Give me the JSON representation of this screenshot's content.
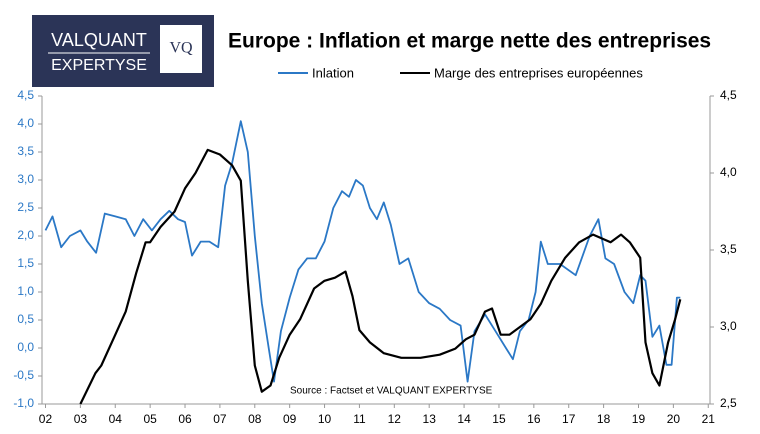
{
  "logo": {
    "line1": "VALQUANT",
    "line2": "EXPERTYSE",
    "badge": "VQ"
  },
  "chart_data": {
    "type": "line",
    "title": "Europe : Inflation et marge nette des entreprises",
    "source": "Source : Factset et VALQUANT EXPERTYSE",
    "legend": "top",
    "xlim": [
      1.9,
      21.05
    ],
    "xticks": [
      {
        "value": 2,
        "label": "02"
      },
      {
        "value": 3,
        "label": "03"
      },
      {
        "value": 4,
        "label": "04"
      },
      {
        "value": 5,
        "label": "05"
      },
      {
        "value": 6,
        "label": "06"
      },
      {
        "value": 7,
        "label": "07"
      },
      {
        "value": 8,
        "label": "08"
      },
      {
        "value": 9,
        "label": "09"
      },
      10,
      11,
      12,
      13,
      14,
      15,
      16,
      17,
      18,
      19,
      20,
      21
    ],
    "ylim": [
      -1.0,
      4.5
    ],
    "yticks": [
      {
        "value": -1.0,
        "label": "-1,0"
      },
      {
        "value": -0.5,
        "label": "-0,5"
      },
      {
        "value": 0.0,
        "label": "0,0"
      },
      {
        "value": 0.5,
        "label": "0,5"
      },
      {
        "value": 1.0,
        "label": "1,0"
      },
      {
        "value": 1.5,
        "label": "1,5"
      },
      {
        "value": 2.0,
        "label": "2,0"
      },
      {
        "value": 2.5,
        "label": "2,5"
      },
      {
        "value": 3.0,
        "label": "3,0"
      },
      {
        "value": 3.5,
        "label": "3,5"
      },
      {
        "value": 4.0,
        "label": "4,0"
      },
      {
        "value": 4.5,
        "label": "4,5"
      }
    ],
    "y2lim": [
      2.5,
      4.5
    ],
    "y2ticks": [
      {
        "value": 2.5,
        "label": "2,5"
      },
      {
        "value": 3.0,
        "label": "3,0"
      },
      {
        "value": 3.5,
        "label": "3,5"
      },
      {
        "value": 4.0,
        "label": "4,0"
      },
      {
        "value": 4.5,
        "label": "4,5"
      }
    ],
    "series": [
      {
        "name": "Inlation",
        "color": "#2b78c6",
        "axis": "y",
        "x": [
          2.0,
          2.2,
          2.45,
          2.7,
          3.0,
          3.2,
          3.45,
          3.7,
          4.0,
          4.3,
          4.55,
          4.8,
          5.05,
          5.3,
          5.55,
          5.8,
          6.0,
          6.2,
          6.45,
          6.7,
          6.95,
          7.15,
          7.35,
          7.6,
          7.8,
          8.0,
          8.2,
          8.4,
          8.55,
          8.75,
          9.0,
          9.25,
          9.5,
          9.75,
          10.0,
          10.25,
          10.5,
          10.7,
          10.9,
          11.1,
          11.3,
          11.5,
          11.7,
          11.9,
          12.15,
          12.4,
          12.7,
          13.0,
          13.3,
          13.6,
          13.9,
          14.1,
          14.3,
          14.6,
          14.9,
          15.2,
          15.4,
          15.6,
          15.85,
          16.05,
          16.2,
          16.4,
          16.75,
          17.2,
          17.6,
          17.85,
          18.05,
          18.3,
          18.6,
          18.85,
          19.05,
          19.2,
          19.4,
          19.6,
          19.8,
          19.95,
          20.1,
          20.2
        ],
        "values": [
          2.1,
          2.35,
          1.8,
          2.0,
          2.1,
          1.9,
          1.7,
          2.4,
          2.35,
          2.3,
          2.0,
          2.3,
          2.1,
          2.3,
          2.45,
          2.3,
          2.25,
          1.65,
          1.9,
          1.9,
          1.8,
          2.9,
          3.3,
          4.05,
          3.5,
          2.0,
          0.8,
          0.0,
          -0.6,
          0.3,
          0.9,
          1.4,
          1.6,
          1.6,
          1.9,
          2.5,
          2.8,
          2.7,
          3.0,
          2.9,
          2.5,
          2.3,
          2.6,
          2.2,
          1.5,
          1.6,
          1.0,
          0.8,
          0.7,
          0.5,
          0.4,
          -0.6,
          0.3,
          0.6,
          0.3,
          0.0,
          -0.2,
          0.3,
          0.5,
          1.0,
          1.9,
          1.5,
          1.5,
          1.3,
          2.0,
          2.3,
          1.6,
          1.5,
          1.0,
          0.8,
          1.3,
          1.2,
          0.2,
          0.4,
          -0.3,
          -0.3,
          0.9,
          0.9
        ]
      },
      {
        "name": "Marge des entreprises européennes",
        "color": "#000000",
        "axis": "y2",
        "x": [
          3.0,
          3.43,
          3.6,
          4.0,
          4.3,
          4.6,
          4.87,
          5.0,
          5.3,
          5.7,
          6.0,
          6.3,
          6.65,
          7.0,
          7.35,
          7.6,
          7.8,
          8.0,
          8.2,
          8.45,
          8.7,
          9.0,
          9.3,
          9.7,
          10.0,
          10.3,
          10.6,
          10.8,
          11.0,
          11.3,
          11.7,
          12.2,
          12.75,
          13.3,
          13.75,
          14.05,
          14.3,
          14.6,
          14.8,
          15.05,
          15.3,
          15.6,
          15.9,
          16.2,
          16.5,
          16.9,
          17.3,
          17.7,
          18.2,
          18.5,
          18.75,
          19.05,
          19.2,
          19.4,
          19.6,
          19.85,
          20.05,
          20.2
        ],
        "values": [
          2.5,
          2.7,
          2.75,
          2.95,
          3.1,
          3.35,
          3.55,
          3.55,
          3.65,
          3.75,
          3.9,
          4.0,
          4.15,
          4.12,
          4.05,
          3.95,
          3.3,
          2.75,
          2.58,
          2.62,
          2.8,
          2.95,
          3.05,
          3.25,
          3.3,
          3.32,
          3.36,
          3.2,
          2.98,
          2.9,
          2.83,
          2.8,
          2.8,
          2.82,
          2.86,
          2.92,
          2.95,
          3.1,
          3.12,
          2.95,
          2.95,
          3.0,
          3.05,
          3.15,
          3.3,
          3.45,
          3.55,
          3.6,
          3.55,
          3.6,
          3.55,
          3.45,
          2.9,
          2.7,
          2.62,
          2.9,
          3.05,
          3.18
        ]
      }
    ]
  }
}
